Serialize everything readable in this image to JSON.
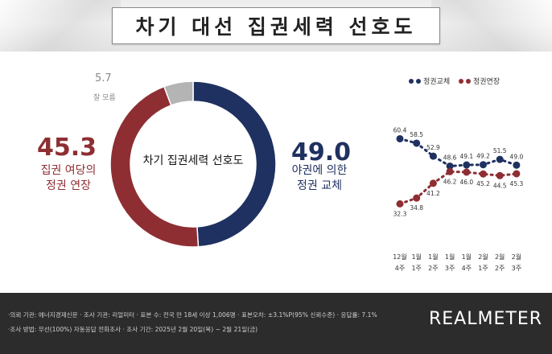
{
  "title": "차기 대선 집권세력 선호도",
  "donut": {
    "center_label": "차기 집권세력 선호도",
    "left_value": "45.3",
    "left_label_line1": "집권 여당의",
    "left_label_line2": "정권 연장",
    "right_value": "49.0",
    "right_label_line1": "야권에 의한",
    "right_label_line2": "정권 교체",
    "top_value": "5.7",
    "top_label": "잘 모름",
    "colors": {
      "change": "#1f3160",
      "extend": "#8e2e33",
      "unsure": "#b4b4b4"
    }
  },
  "legend": {
    "change": "정권교체",
    "extend": "정권연장"
  },
  "chart_data": [
    {
      "type": "pie",
      "title": "차기 집권세력 선호도",
      "slices": [
        {
          "label": "야권에 의한 정권 교체",
          "value": 49.0
        },
        {
          "label": "집권 여당의 정권 연장",
          "value": 45.3
        },
        {
          "label": "잘 모름",
          "value": 5.7
        }
      ]
    },
    {
      "type": "line",
      "categories": [
        [
          "12월",
          "4주"
        ],
        [
          "1월",
          "1주"
        ],
        [
          "1월",
          "2주"
        ],
        [
          "1월",
          "3주"
        ],
        [
          "1월",
          "4주"
        ],
        [
          "2월",
          "1주"
        ],
        [
          "2월",
          "2주"
        ],
        [
          "2월",
          "3주"
        ]
      ],
      "series": [
        {
          "name": "정권교체",
          "color": "#1f3160",
          "values": [
            60.4,
            58.5,
            52.9,
            48.6,
            49.1,
            49.2,
            51.5,
            49.0
          ]
        },
        {
          "name": "정권연장",
          "color": "#8e2e33",
          "values": [
            32.3,
            34.8,
            41.2,
            46.2,
            46.0,
            45.2,
            44.5,
            45.3
          ]
        }
      ],
      "ylim": [
        30,
        63
      ],
      "legend": "top-right",
      "grid": false
    }
  ],
  "footer": {
    "line1": "·의뢰 기관: 에너지경제신문 · 조사 기관: 리얼미터 · 표본 수: 전국 만 18세 이상 1,006명 · 표본오차: ±3.1%P(95% 신뢰수준) · 응답률: 7.1%",
    "line2": "·조사 방법: 무선(100%) 자동응답 전화조사 · 조사 기간: 2025년 2월 20일(목) ~ 2월 21일(금)",
    "brand": "REALMETER"
  }
}
